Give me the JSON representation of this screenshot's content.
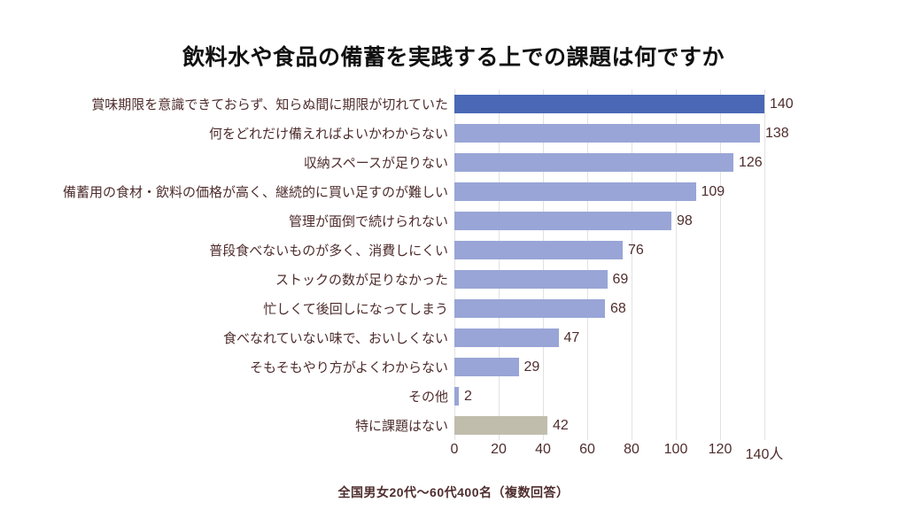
{
  "title": "飲料水や食品の備蓄を実践する上での課題は何ですか",
  "caption": "全国男女20代〜60代400名（複数回答）",
  "chart_data": {
    "type": "bar",
    "orientation": "horizontal",
    "title": "飲料水や食品の備蓄を実践する上での課題は何ですか",
    "caption": "全国男女20代〜60代400名（複数回答）",
    "unit": "人",
    "categories": [
      "賞味期限を意識できておらず、知らぬ間に期限が切れていた",
      "何をどれだけ備えればよいかわからない",
      "収納スペースが足りない",
      "備蓄用の食材・飲料の価格が高く、継続的に買い足すのが難しい",
      "管理が面倒で続けられない",
      "普段食べないものが多く、消費しにくい",
      "ストックの数が足りなかった",
      "忙しくて後回しになってしまう",
      "食べなれていない味で、おいしくない",
      "そもそもやり方がよくわからない",
      "その他",
      "特に課題はない"
    ],
    "values": [
      140,
      138,
      126,
      109,
      98,
      76,
      69,
      68,
      47,
      29,
      2,
      42
    ],
    "bar_colors": [
      "#4a68b5",
      "#99a5d6",
      "#99a5d6",
      "#99a5d6",
      "#99a5d6",
      "#99a5d6",
      "#99a5d6",
      "#99a5d6",
      "#99a5d6",
      "#99a5d6",
      "#99a5d6",
      "#c0bdad"
    ],
    "x_ticks": [
      0,
      20,
      40,
      60,
      80,
      100,
      120,
      140
    ],
    "x_tick_labels": [
      "0",
      "20",
      "40",
      "60",
      "80",
      "100",
      "120",
      "140人"
    ],
    "xlim": [
      0,
      140
    ],
    "grid": "vertical",
    "legend": "none",
    "colors": {
      "highlight_bar": "#4a68b5",
      "default_bar": "#99a5d6",
      "neutral_bar": "#c0bdad",
      "label_text": "#4f2d2d",
      "title_text": "#111111",
      "gridline": "#e3e1e1",
      "background": "#ffffff"
    }
  }
}
